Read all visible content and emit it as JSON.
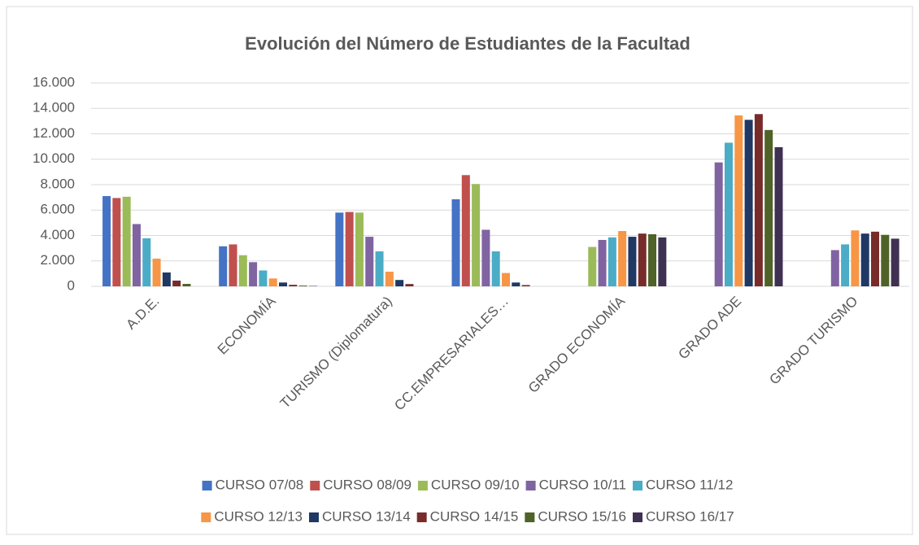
{
  "chart_data": {
    "type": "bar",
    "title": "Evolución del Número de Estudiantes de la Facultad",
    "categories": [
      "A.D.E.",
      "ECONOMÍA",
      "TURISMO (Diplomatura)",
      "CC.EMPRESARIALES…",
      "GRADO ECONOMÍA",
      "GRADO ADE",
      "GRADO TURISMO"
    ],
    "series": [
      {
        "name": "CURSO 07/08",
        "color": "#4472c4",
        "values": [
          7100,
          3150,
          5800,
          6850,
          null,
          null,
          null
        ]
      },
      {
        "name": "CURSO 08/09",
        "color": "#c0504d",
        "values": [
          6950,
          3300,
          5850,
          8750,
          null,
          null,
          null
        ]
      },
      {
        "name": "CURSO 09/10",
        "color": "#9bbb59",
        "values": [
          7050,
          2450,
          5800,
          8050,
          3100,
          null,
          null
        ]
      },
      {
        "name": "CURSO 10/11",
        "color": "#8064a2",
        "values": [
          4900,
          1900,
          3900,
          4450,
          3650,
          9750,
          2850
        ]
      },
      {
        "name": "CURSO 11/12",
        "color": "#4bacc6",
        "values": [
          3780,
          1250,
          2750,
          2750,
          3850,
          11300,
          3300
        ]
      },
      {
        "name": "CURSO 12/13",
        "color": "#f79646",
        "values": [
          2180,
          620,
          1150,
          1050,
          4350,
          13450,
          4400
        ]
      },
      {
        "name": "CURSO 13/14",
        "color": "#1f3864",
        "values": [
          1090,
          300,
          500,
          300,
          3900,
          13100,
          4150
        ]
      },
      {
        "name": "CURSO 14/15",
        "color": "#772c2a",
        "values": [
          450,
          120,
          180,
          100,
          4150,
          13550,
          4300
        ]
      },
      {
        "name": "CURSO 15/16",
        "color": "#4f6228",
        "values": [
          190,
          60,
          null,
          null,
          4100,
          12300,
          4050
        ]
      },
      {
        "name": "CURSO 16/17",
        "color": "#3f3151",
        "values": [
          null,
          30,
          null,
          null,
          3850,
          10950,
          3750
        ]
      }
    ],
    "ylim": [
      0,
      16000
    ],
    "yticks": [
      0,
      {
        "value": 2000,
        "label": "2.000"
      },
      {
        "value": 4000,
        "label": "4.000"
      },
      {
        "value": 6000,
        "label": "6.000"
      },
      {
        "value": 8000,
        "label": "8.000"
      },
      {
        "value": 10000,
        "label": "10.000"
      },
      {
        "value": 12000,
        "label": "12.000"
      },
      {
        "value": 14000,
        "label": "14.000"
      },
      {
        "value": 16000,
        "label": "16.000"
      }
    ],
    "grid": true,
    "legend": "bottom"
  }
}
